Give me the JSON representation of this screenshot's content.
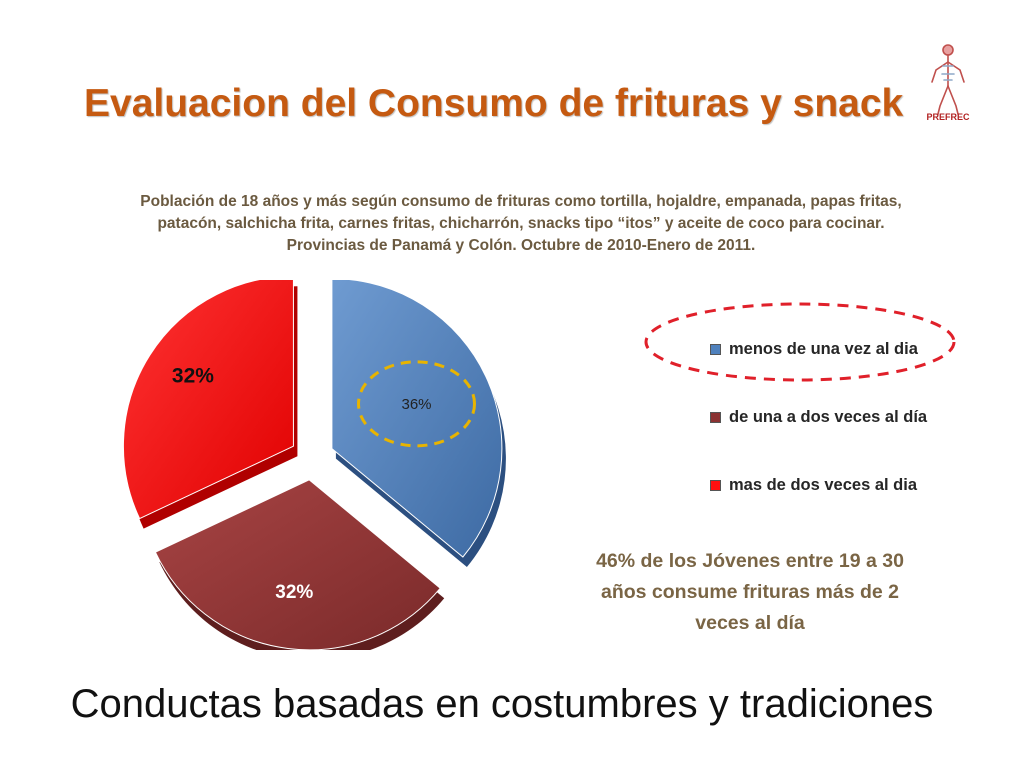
{
  "slide": {
    "title": "Evaluacion del Consumo de frituras y snack",
    "logo_text": "PREFREC",
    "subtitle_lines": [
      "Población de 18 años y más según consumo de frituras como tortilla, hojaldre, empanada, papas fritas,",
      "patacón, salchicha frita, carnes fritas, chicharrón, snacks tipo “itos” y aceite de coco para cocinar.",
      "Provincias de Panamá y Colón. Octubre de 2010-Enero de 2011."
    ],
    "note_lines": [
      "46% de los Jóvenes entre 19 a 30",
      "años consume frituras más de 2",
      "veces al día"
    ],
    "footer": "Conductas basadas en costumbres y tradiciones"
  },
  "colors": {
    "title": "#c55a11",
    "menos": "#4f81bd",
    "una_dos": "#8b3232",
    "mas_dos": "#ff1010",
    "oval": "#e0202a",
    "highlight": "#e8b400"
  },
  "chart_data": {
    "type": "pie",
    "title": "",
    "slices": [
      {
        "name": "menos de una vez al dia",
        "value": 36,
        "label": "36%",
        "color": "#4f81bd"
      },
      {
        "name": "de una a dos veces al día",
        "value": 32,
        "label": "32%",
        "color": "#8b3232"
      },
      {
        "name": "mas de dos veces al dia",
        "value": 32,
        "label": "32%",
        "color": "#ff1010"
      }
    ],
    "legend": "right",
    "highlighted": [
      "36%",
      "menos de una vez al dia"
    ]
  }
}
